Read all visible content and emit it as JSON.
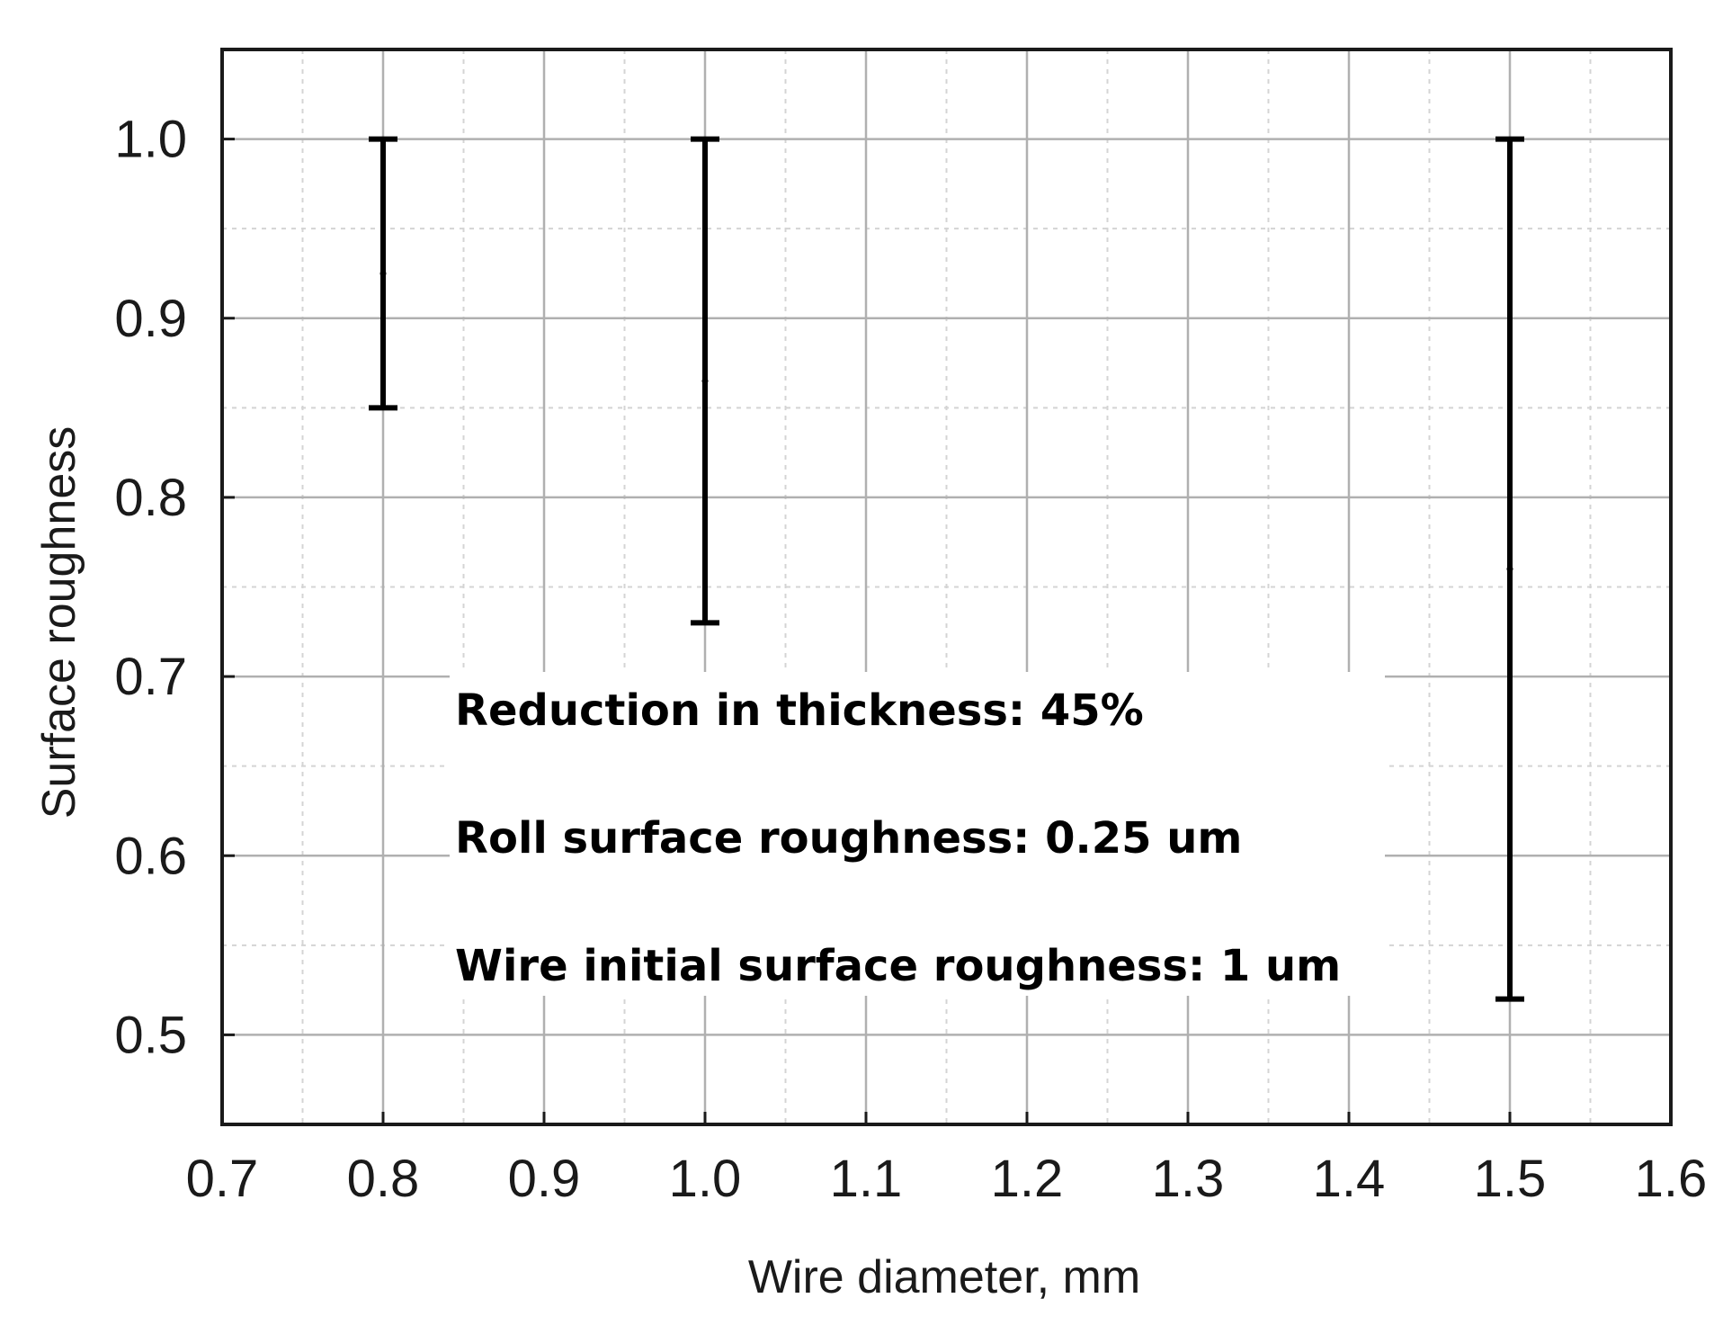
{
  "chart_data": {
    "type": "scatter",
    "title": "",
    "xlabel": "Wire diameter, mm",
    "ylabel": "Surface roughness",
    "xlim": [
      0.7,
      1.6
    ],
    "ylim": [
      0.45,
      1.05
    ],
    "x_ticks": [
      "0.7",
      "0.8",
      "0.9",
      "1.0",
      "1.1",
      "1.2",
      "1.3",
      "1.4",
      "1.5",
      "1.6"
    ],
    "y_ticks": [
      "0.5",
      "0.6",
      "0.7",
      "0.8",
      "0.9",
      "1.0"
    ],
    "grid": true,
    "series": [
      {
        "points": [
          {
            "x": 0.8,
            "y": 0.925,
            "low": 0.85,
            "high": 1.0
          },
          {
            "x": 1.0,
            "y": 0.865,
            "low": 0.73,
            "high": 1.0
          },
          {
            "x": 1.5,
            "y": 0.76,
            "low": 0.52,
            "high": 1.0
          }
        ]
      }
    ],
    "annotations": [
      "Reduction in thickness: 45%",
      "Roll surface roughness: 0.25 um",
      "Wire initial surface roughness: 1 um"
    ],
    "colors": {
      "major_grid": "#b0b0b0",
      "minor_grid": "#d4d4d4",
      "axis": "#1a1a1a",
      "error_bar": "#000000"
    }
  }
}
